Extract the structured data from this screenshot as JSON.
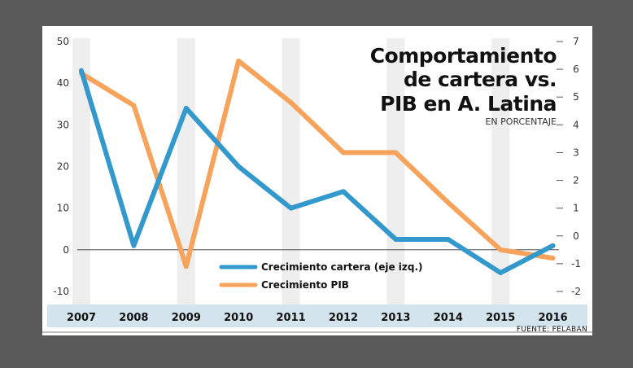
{
  "chart_data": {
    "type": "line",
    "title_lines": [
      "Comportamiento",
      "de cartera vs.",
      "PIB en A. Latina"
    ],
    "subtitle": "EN PORCENTAJE",
    "source": "FUENTE: FELABAN",
    "categories": [
      "2007",
      "2008",
      "2009",
      "2010",
      "2011",
      "2012",
      "2013",
      "2014",
      "2015",
      "2016"
    ],
    "y_left": {
      "min": -10,
      "max": 50,
      "ticks": [
        50,
        40,
        30,
        20,
        10,
        0,
        -10
      ]
    },
    "y_right": {
      "min": -2,
      "max": 7,
      "ticks": [
        7,
        6,
        5,
        4,
        3,
        2,
        1,
        0,
        -1,
        -2
      ]
    },
    "grid": "alternating vertical bands",
    "legend_position": "center-bottom",
    "series": [
      {
        "name": "Crecimiento cartera (eje izq.)",
        "axis": "left",
        "color": "#3399cc",
        "values": [
          43,
          1,
          34,
          20,
          10,
          14,
          2.5,
          2.5,
          -5.5,
          1
        ]
      },
      {
        "name": "Crecimiento PIB",
        "axis": "right",
        "color": "#f7a35c",
        "values": [
          5.85,
          4.7,
          -1.1,
          6.3,
          4.8,
          3,
          3,
          1.2,
          -0.5,
          -0.8
        ]
      }
    ]
  }
}
